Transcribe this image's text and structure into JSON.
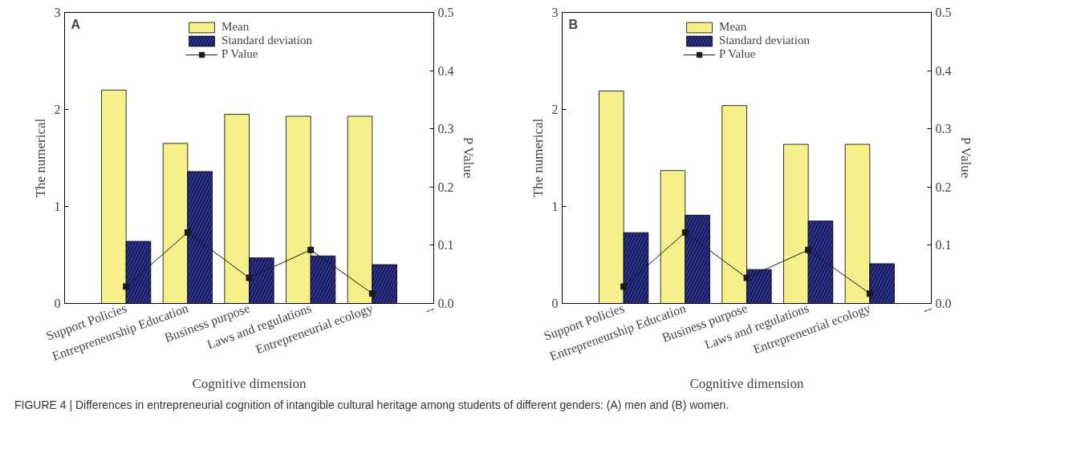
{
  "chart_data": [
    {
      "type": "bar",
      "annotations": [
        "A"
      ],
      "xlabel": "Cognitive dimension",
      "ylabel": "The numerical",
      "y2label": "P Value",
      "categories": [
        "Support Policies",
        "Entrepreneurship Education",
        "Business purpose",
        "Laws and regulations",
        "Entrepreneurial ecology",
        "--"
      ],
      "series": [
        {
          "name": "Mean",
          "color": "#f5f08a",
          "values": [
            2.2,
            1.65,
            1.95,
            1.93,
            1.93,
            null
          ]
        },
        {
          "name": "Standard deviation",
          "color": "#2b3190",
          "values": [
            0.64,
            1.36,
            0.47,
            0.49,
            0.4,
            null
          ]
        },
        {
          "name": "P Value",
          "type": "line",
          "axis": "y2",
          "color": "#1a1a1a",
          "marker": "square",
          "values": [
            0.029,
            0.122,
            0.044,
            0.092,
            0.017,
            null
          ]
        }
      ],
      "ylim": [
        0,
        3
      ],
      "yticks": [
        0,
        1,
        2,
        3
      ],
      "y2lim": [
        0,
        0.5
      ],
      "y2ticks": [
        {
          "value": 0,
          "label": "0.0"
        },
        0.1,
        0.2,
        0.3,
        0.4,
        0.5
      ],
      "grid": false,
      "legend": "top"
    },
    {
      "type": "bar",
      "annotations": [
        "B",
        "FIGURE 4 | Differences in entrepreneurial cognition of intangible cultural heritage among students of different genders: (A) men and (B) women."
      ],
      "xlabel": "Cognitive dimension",
      "ylabel": "The numerical",
      "y2label": "P Value",
      "categories": [
        "Support Policies",
        "Entrepreneurship Education",
        "Business purpose",
        "Laws and regulations",
        "Entrepreneurial ecology",
        "--"
      ],
      "series": [
        {
          "name": "Mean",
          "color": "#f5f08a",
          "values": [
            2.19,
            1.37,
            2.04,
            1.64,
            1.64,
            null
          ]
        },
        {
          "name": "Standard deviation",
          "color": "#2b3190",
          "values": [
            0.73,
            0.91,
            0.35,
            0.85,
            0.41,
            null
          ]
        },
        {
          "name": "P Value",
          "type": "line",
          "axis": "y2",
          "color": "#1a1a1a",
          "marker": "square",
          "values": [
            0.029,
            0.122,
            0.044,
            0.092,
            0.017,
            null
          ]
        }
      ],
      "ylim": [
        0,
        3
      ],
      "yticks": [
        0,
        1,
        2,
        3
      ],
      "y2lim": [
        0,
        0.5
      ],
      "y2ticks": [
        {
          "value": 0,
          "label": "0.0"
        },
        0.1,
        0.2,
        0.3,
        0.4,
        0.5
      ],
      "grid": false,
      "legend": "top"
    }
  ]
}
